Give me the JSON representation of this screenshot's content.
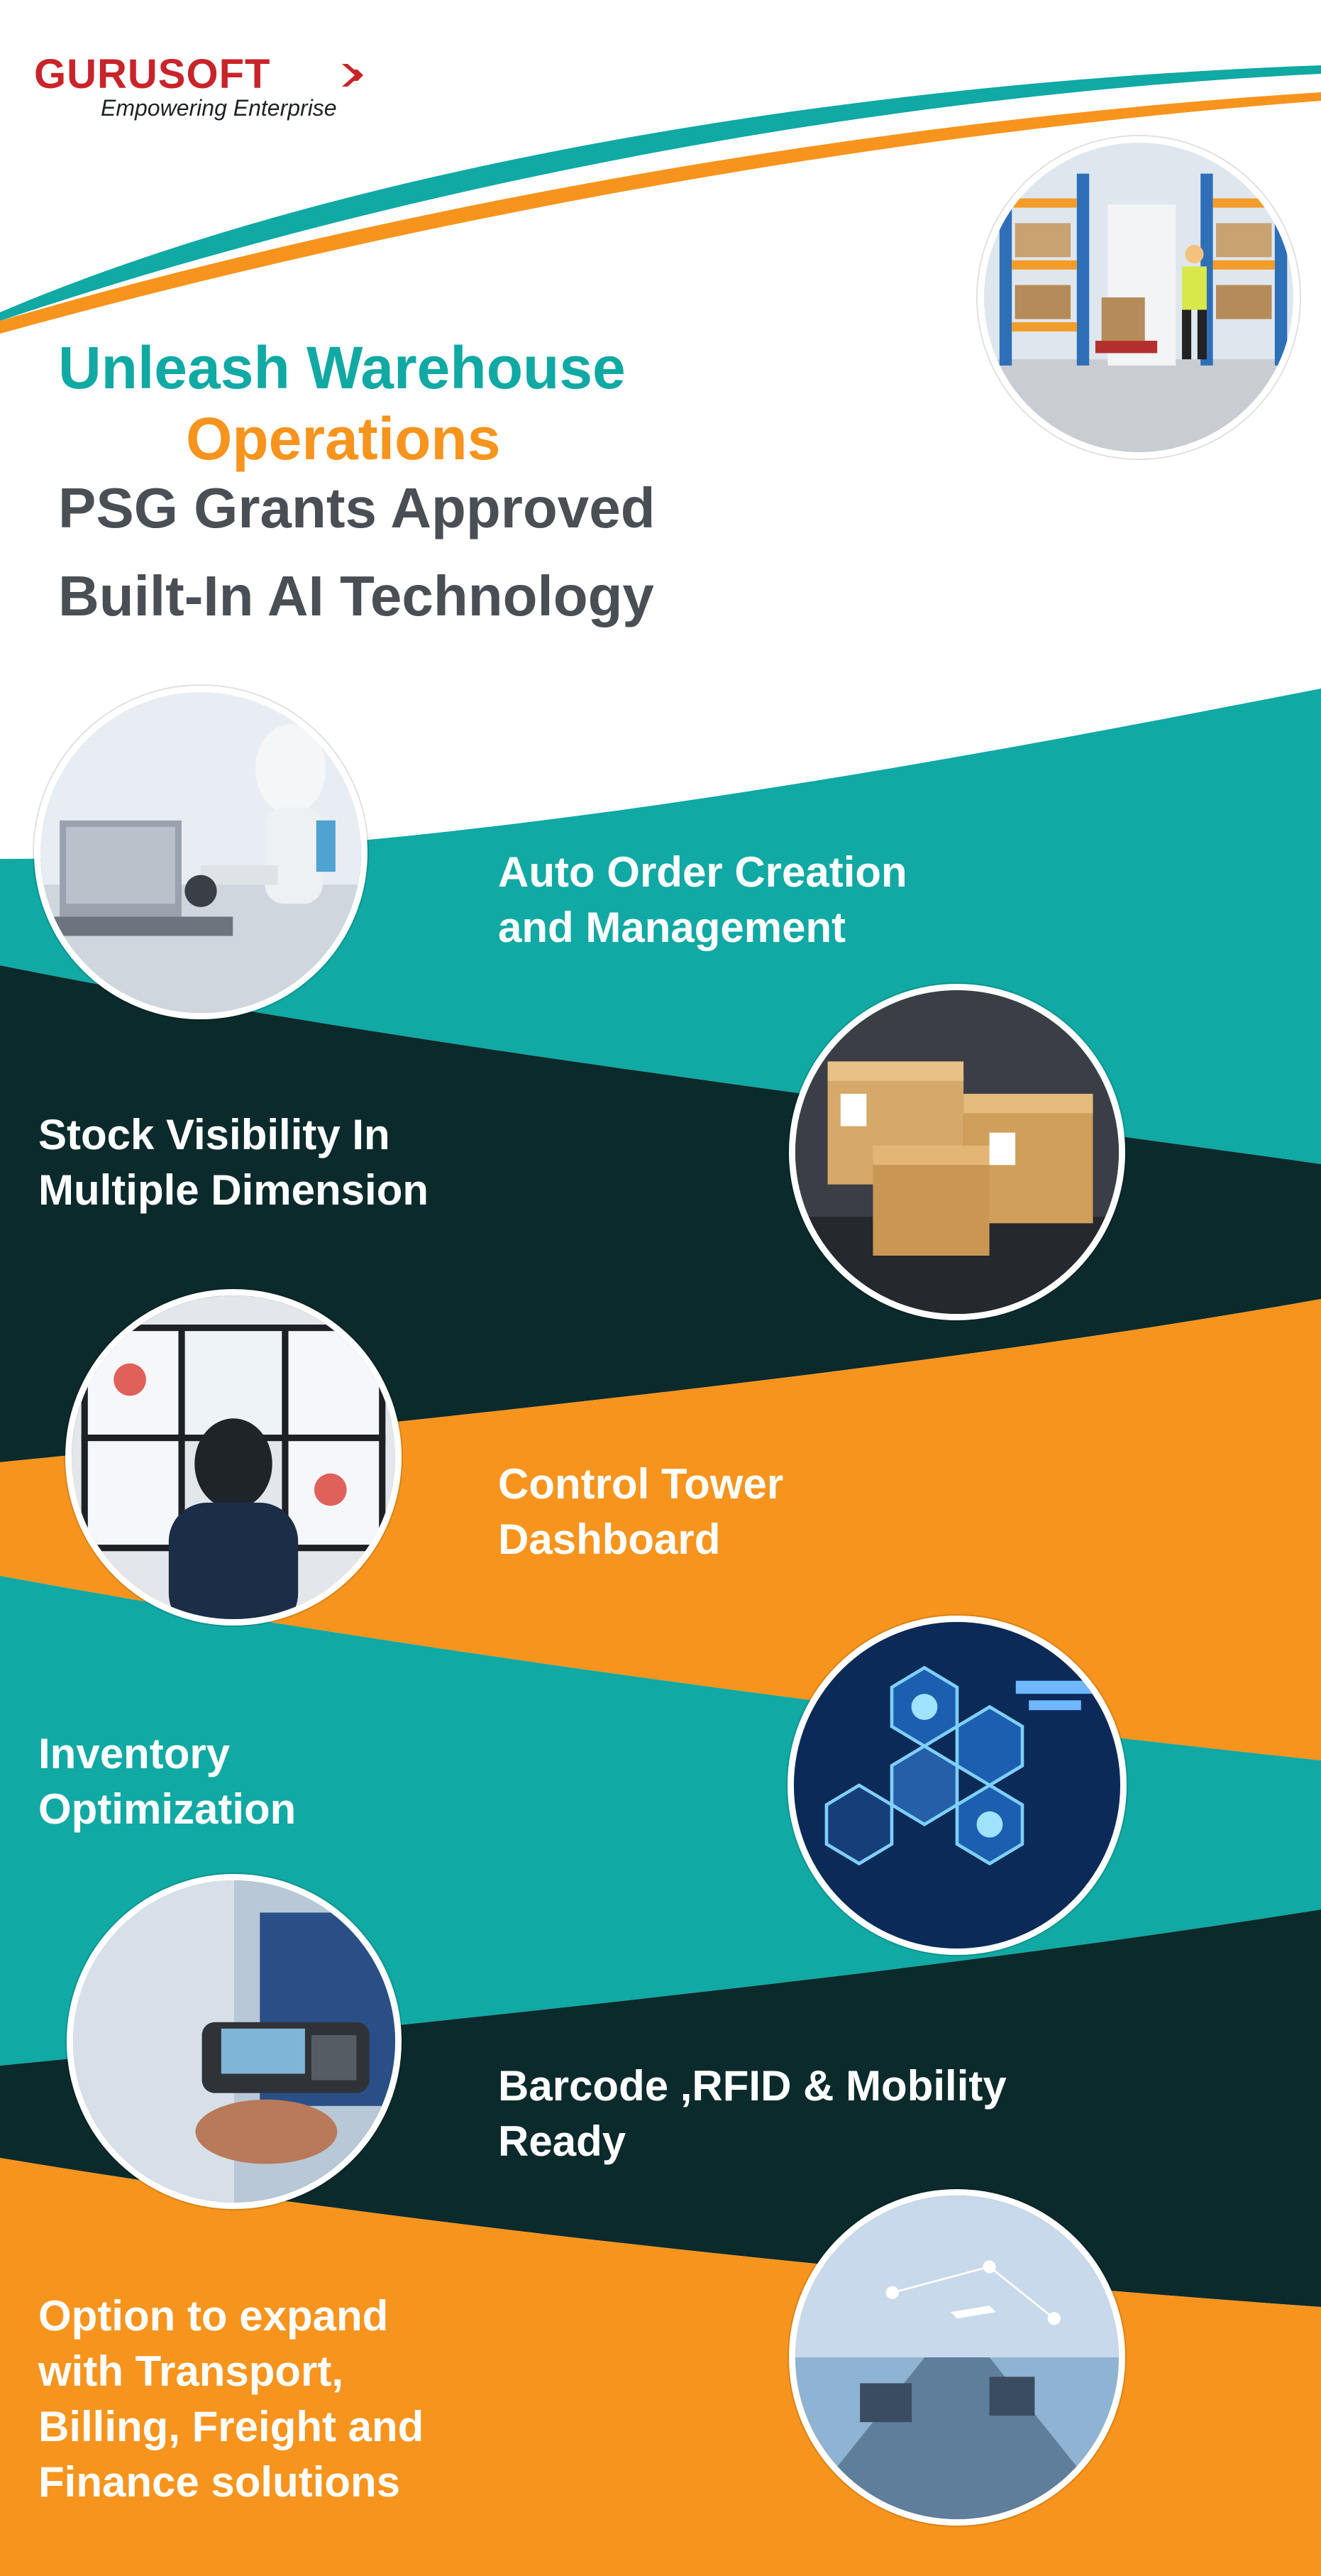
{
  "brand": {
    "name": "GURUSOFT",
    "tagline": "Empowering Enterprise",
    "primary_color": "#c8242a"
  },
  "headline": {
    "line1": "Unleash Warehouse",
    "line2": "Operations",
    "line3": "PSG Grants Approved",
    "line4": "Built-In AI Technology"
  },
  "colors": {
    "teal": "#10a9a4",
    "dark": "#0b2a2b",
    "orange": "#f7941d",
    "grey": "#4a4e55"
  },
  "images": [
    {
      "name": "warehouse-worker-photo-icon"
    },
    {
      "name": "robot-laptop-photo-icon"
    },
    {
      "name": "parcel-boxes-photo-icon"
    },
    {
      "name": "control-room-photo-icon"
    },
    {
      "name": "optimization-hexagon-photo-icon"
    },
    {
      "name": "barcode-scanner-photo-icon"
    },
    {
      "name": "transport-logistics-photo-icon"
    }
  ],
  "features": [
    "Auto Order Creation\nand Management",
    "Stock Visibility In\nMultiple Dimension",
    "Control Tower\nDashboard",
    "Inventory\nOptimization",
    "Barcode ,RFID & Mobility\nReady",
    "Option to expand\nwith  Transport,\nBilling, Freight and\nFinance solutions"
  ]
}
